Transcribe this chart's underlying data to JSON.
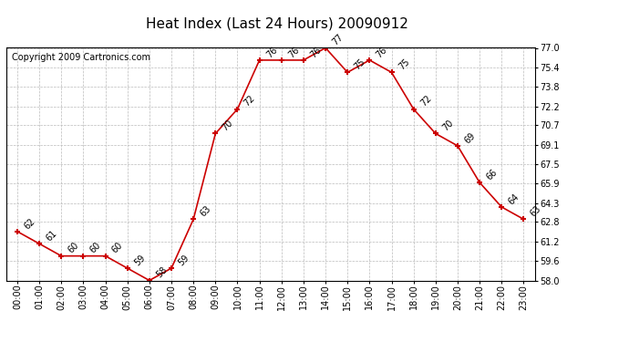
{
  "title": "Heat Index (Last 24 Hours) 20090912",
  "copyright": "Copyright 2009 Cartronics.com",
  "hours": [
    "00:00",
    "01:00",
    "02:00",
    "03:00",
    "04:00",
    "05:00",
    "06:00",
    "07:00",
    "08:00",
    "09:00",
    "10:00",
    "11:00",
    "12:00",
    "13:00",
    "14:00",
    "15:00",
    "16:00",
    "17:00",
    "18:00",
    "19:00",
    "20:00",
    "21:00",
    "22:00",
    "23:00"
  ],
  "values": [
    62,
    61,
    60,
    60,
    60,
    59,
    58,
    59,
    63,
    70,
    72,
    76,
    76,
    76,
    77,
    75,
    76,
    75,
    72,
    70,
    69,
    66,
    64,
    63
  ],
  "ylim": [
    58.0,
    77.0
  ],
  "yticks": [
    58.0,
    59.6,
    61.2,
    62.8,
    64.3,
    65.9,
    67.5,
    69.1,
    70.7,
    72.2,
    73.8,
    75.4,
    77.0
  ],
  "line_color": "#cc0000",
  "marker_color": "#cc0000",
  "bg_color": "#ffffff",
  "grid_color": "#bbbbbb",
  "title_fontsize": 11,
  "label_fontsize": 7,
  "annot_fontsize": 7,
  "copyright_fontsize": 7
}
